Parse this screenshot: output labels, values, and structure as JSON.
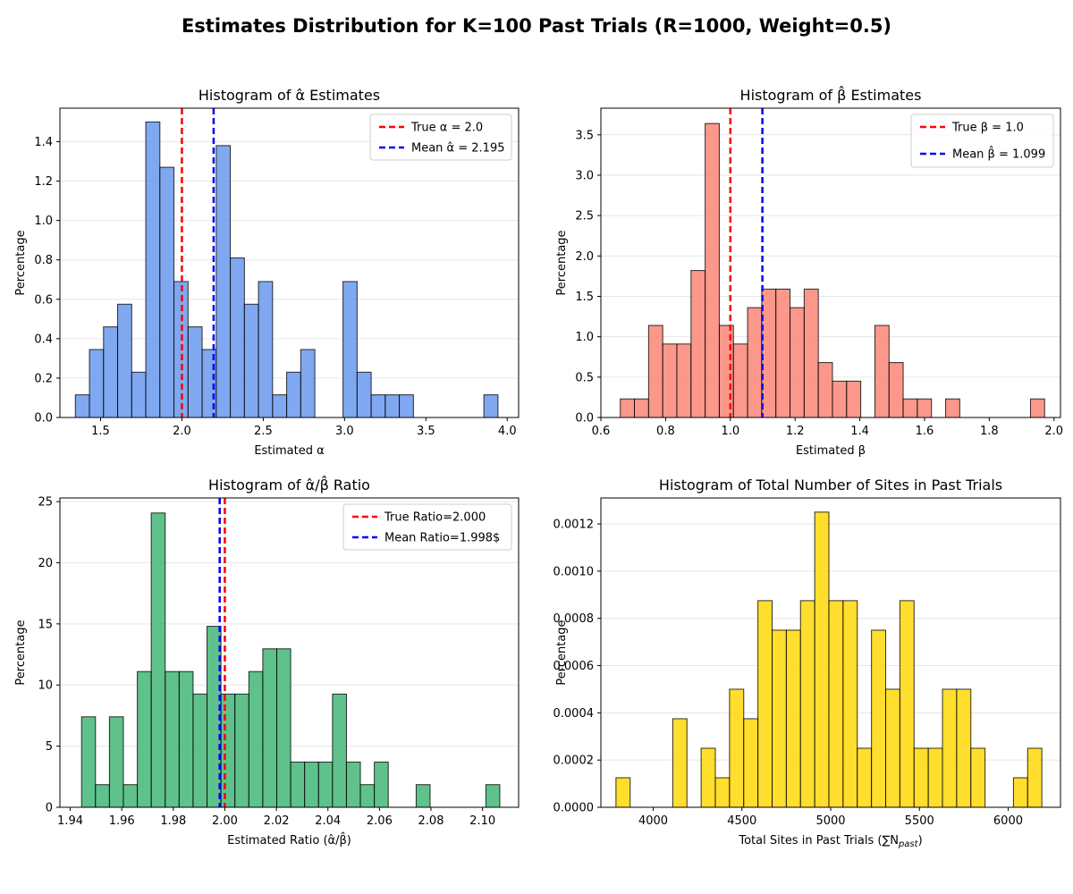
{
  "suptitle": "Estimates Distribution for K=100 Past Trials (R=1000, Weight=0.5)",
  "chart_data": [
    {
      "type": "bar",
      "title": "Histogram of α̂ Estimates",
      "xlabel": "Estimated α",
      "ylabel": "Percentage",
      "color": "#6495ED",
      "xlim": [
        1.25,
        4.07
      ],
      "ylim": [
        0,
        1.57
      ],
      "xticks": [
        1.5,
        2.0,
        2.5,
        3.0,
        3.5,
        4.0
      ],
      "xtick_labels": [
        "1.5",
        "2.0",
        "2.5",
        "3.0",
        "3.5",
        "4.0"
      ],
      "yticks": [
        0.0,
        0.2,
        0.4,
        0.6,
        0.8,
        1.0,
        1.2,
        1.4
      ],
      "ytick_labels": [
        "0.0",
        "0.2",
        "0.4",
        "0.6",
        "0.8",
        "1.0",
        "1.2",
        "1.4"
      ],
      "bin_start": 1.345,
      "bin_width": 0.0866,
      "values": [
        0.115,
        0.345,
        0.46,
        0.575,
        0.23,
        1.5,
        1.27,
        0.69,
        0.46,
        0.345,
        1.38,
        0.81,
        0.575,
        0.69,
        0.115,
        0.23,
        0.345,
        0,
        0,
        0.69,
        0.23,
        0.115,
        0.115,
        0.115,
        0,
        0,
        0,
        0,
        0,
        0.115
      ],
      "legend_position": "top-right",
      "vlines": [
        {
          "x": 2.0,
          "color": "#ff0000",
          "label": "True α = 2.0"
        },
        {
          "x": 2.195,
          "color": "#0000ff",
          "label": "Mean α̂ = 2.195"
        }
      ]
    },
    {
      "type": "bar",
      "title": "Histogram of β̂ Estimates",
      "xlabel": "Estimated β",
      "ylabel": "Percentage",
      "color": "#FA8072",
      "xlim": [
        0.6,
        2.02
      ],
      "ylim": [
        0,
        3.83
      ],
      "xticks": [
        0.6,
        0.8,
        1.0,
        1.2,
        1.4,
        1.6,
        1.8,
        2.0
      ],
      "xtick_labels": [
        "0.6",
        "0.8",
        "1.0",
        "1.2",
        "1.4",
        "1.6",
        "1.8",
        "2.0"
      ],
      "yticks": [
        0.0,
        0.5,
        1.0,
        1.5,
        2.0,
        2.5,
        3.0,
        3.5
      ],
      "ytick_labels": [
        "0.0",
        "0.5",
        "1.0",
        "1.5",
        "2.0",
        "2.5",
        "3.0",
        "3.5"
      ],
      "bin_start": 0.66,
      "bin_width": 0.0437,
      "values": [
        0.23,
        0.23,
        1.14,
        0.91,
        0.91,
        1.82,
        3.64,
        1.14,
        0.91,
        1.36,
        1.59,
        1.59,
        1.36,
        1.59,
        0.68,
        0.45,
        0.45,
        0,
        1.14,
        0.68,
        0.23,
        0.23,
        0,
        0.23,
        0,
        0,
        0,
        0,
        0,
        0.23
      ],
      "legend_position": "top-right",
      "vlines": [
        {
          "x": 1.0,
          "color": "#ff0000",
          "label": "True β = 1.0"
        },
        {
          "x": 1.099,
          "color": "#0000ff",
          "label": "Mean β̂ = 1.099"
        }
      ]
    },
    {
      "type": "bar",
      "title": "Histogram of α̂/β̂ Ratio",
      "xlabel": "Estimated Ratio (α̂/β̂)",
      "ylabel": "Percentage",
      "color": "#3CB371",
      "xlim": [
        1.936,
        2.114
      ],
      "ylim": [
        0,
        25.3
      ],
      "xticks": [
        1.94,
        1.96,
        1.98,
        2.0,
        2.02,
        2.04,
        2.06,
        2.08,
        2.1
      ],
      "xtick_labels": [
        "1.94",
        "1.96",
        "1.98",
        "2.00",
        "2.02",
        "2.04",
        "2.06",
        "2.08",
        "2.10"
      ],
      "yticks": [
        0,
        5,
        10,
        15,
        20,
        25
      ],
      "ytick_labels": [
        "0",
        "5",
        "10",
        "15",
        "20",
        "25"
      ],
      "bin_start": 1.9444,
      "bin_width": 0.00541,
      "values": [
        7.4,
        1.85,
        7.4,
        1.85,
        11.1,
        24.07,
        11.1,
        11.1,
        9.26,
        14.8,
        9.26,
        9.26,
        11.1,
        12.96,
        12.96,
        3.7,
        3.7,
        3.7,
        9.26,
        3.7,
        1.85,
        3.7,
        0,
        0,
        1.85,
        0,
        0,
        0,
        0,
        1.85
      ],
      "legend_position": "top-right",
      "vlines": [
        {
          "x": 2.0,
          "color": "#ff0000",
          "label": "True Ratio=2.000"
        },
        {
          "x": 1.998,
          "color": "#0000ff",
          "label": "Mean Ratio=1.998$"
        }
      ]
    },
    {
      "type": "bar",
      "title": "Histogram of Total Number of Sites in Past Trials",
      "xlabel": "Total Sites in Past Trials (∑N",
      "xlabel_sub": "past",
      "xlabel_end": ")",
      "ylabel": "Percentage",
      "color": "#FFD700",
      "xlim": [
        3705,
        6295
      ],
      "ylim": [
        0,
        0.00131
      ],
      "xticks": [
        4000,
        4500,
        5000,
        5500,
        6000
      ],
      "xtick_labels": [
        "4000",
        "4500",
        "5000",
        "5500",
        "6000"
      ],
      "yticks": [
        0,
        0.0002,
        0.0004,
        0.0006,
        0.0008,
        0.001,
        0.0012
      ],
      "ytick_labels": [
        "0.0000",
        "0.0002",
        "0.0004",
        "0.0006",
        "0.0008",
        "0.0010",
        "0.0012"
      ],
      "bin_start": 3790,
      "bin_width": 80,
      "values": [
        0.000125,
        0,
        0,
        0,
        0.000375,
        0,
        0.00025,
        0.000125,
        0.0005,
        0.000375,
        0.000875,
        0.00075,
        0.00075,
        0.000875,
        0.00125,
        0.000875,
        0.000875,
        0.00025,
        0.00075,
        0.0005,
        0.000875,
        0.00025,
        0.00025,
        0.0005,
        0.0005,
        0.00025,
        0,
        0,
        0.000125,
        0.00025
      ],
      "legend_position": "none",
      "vlines": []
    }
  ]
}
